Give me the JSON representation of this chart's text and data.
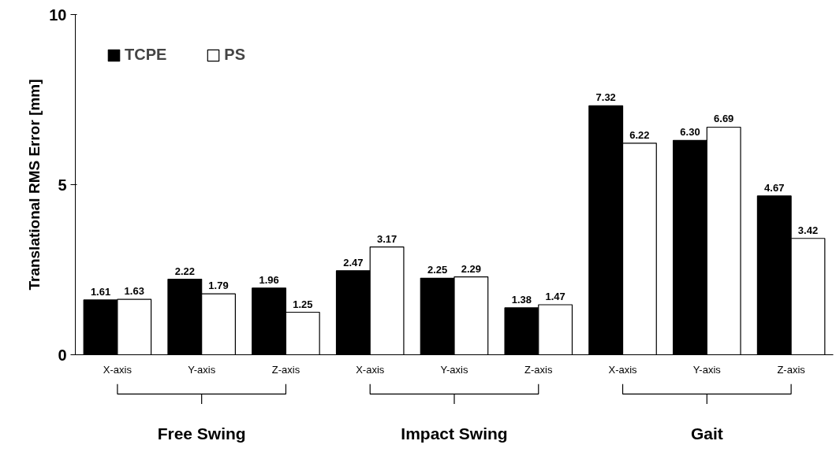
{
  "chart_data": {
    "type": "bar",
    "ylabel": "Translational RMS Error [mm]",
    "categories": [
      "X-axis",
      "Y-axis",
      "Z-axis",
      "X-axis",
      "Y-axis",
      "Z-axis",
      "X-axis",
      "Y-axis",
      "Z-axis"
    ],
    "series": [
      {
        "name": "TCPE",
        "color": "#000000",
        "values": [
          1.61,
          2.22,
          1.96,
          2.47,
          2.25,
          1.38,
          7.32,
          6.3,
          4.67
        ]
      },
      {
        "name": "PS",
        "color": "#ffffff",
        "values": [
          1.63,
          1.79,
          1.25,
          3.17,
          2.29,
          1.47,
          6.22,
          6.69,
          3.42
        ]
      }
    ],
    "value_labels": [
      [
        "1.61",
        "2.22",
        "1.96",
        "2.47",
        "2.25",
        "1.38",
        "7.32",
        "6.30",
        "4.67"
      ],
      [
        "1.63",
        "1.79",
        "1.25",
        "3.17",
        "2.29",
        "1.47",
        "6.22",
        "6.69",
        "3.42"
      ]
    ],
    "annotations": [
      "Free Swing",
      "Impact Swing",
      "Gait"
    ],
    "ylim": [
      0,
      10
    ],
    "yticks": [
      0,
      5,
      10
    ],
    "grid": false,
    "legend": "top left"
  }
}
